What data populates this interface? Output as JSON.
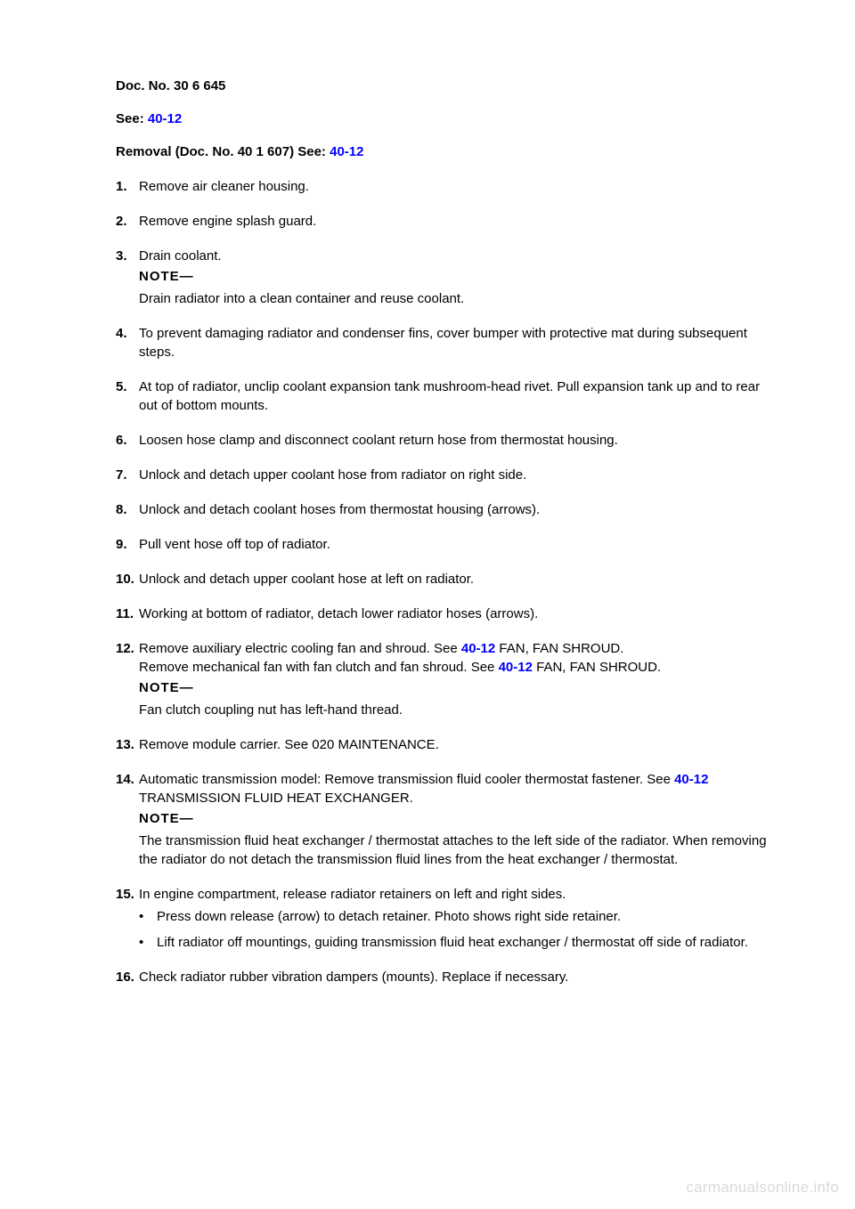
{
  "headers": {
    "doc_no": "Doc. No. 30 6 645",
    "see_label": "See:",
    "see_link_1": "40-12",
    "removal_label": "Removal (Doc. No. 40 1 607)   See:",
    "removal_link": "40-12"
  },
  "steps": {
    "s1": {
      "n": "1.",
      "t": "Remove air cleaner housing."
    },
    "s2": {
      "n": "2.",
      "t": "Remove engine splash guard."
    },
    "s3": {
      "n": "3.",
      "t": "Drain coolant."
    },
    "note_coolant_label": "NOTE—",
    "note_coolant_body": "Drain radiator into a clean container and reuse coolant.",
    "s4": {
      "n": "4.",
      "t": "To prevent damaging radiator and condenser fins, cover bumper with protective mat during subsequent steps."
    },
    "s5": {
      "n": "5.",
      "t": "At top of radiator, unclip coolant expansion tank mushroom-head rivet. Pull expansion tank up and to rear out of bottom mounts."
    },
    "s6": {
      "n": "6.",
      "t": "Loosen hose clamp and disconnect coolant return hose from thermostat housing."
    },
    "s7": {
      "n": "7.",
      "t": "Unlock and detach upper coolant hose from radiator on right side."
    },
    "s8": {
      "n": "8.",
      "t": "Unlock and detach coolant hoses from thermostat housing (arrows)."
    },
    "s9": {
      "n": "9.",
      "t": "Pull vent hose off top of radiator."
    },
    "s10": {
      "n": "10.",
      "t": "Unlock and detach upper coolant hose at left on radiator."
    },
    "s11": {
      "n": "11.",
      "t": "Working at bottom of radiator, detach lower radiator hoses (arrows)."
    },
    "s12": {
      "n": "12.",
      "t_a": "Remove auxiliary electric cooling fan and shroud. See ",
      "link_a": "40-12",
      "t_a2": " FAN, FAN SHROUD.",
      "t_b": "Remove mechanical fan with fan clutch and fan shroud. See ",
      "link_b": "40-12",
      "t_b2": " FAN, FAN SHROUD."
    },
    "note_coupling_label": "NOTE—",
    "note_coupling_body": "Fan clutch coupling nut has left-hand thread.",
    "s13": {
      "n": "13.",
      "t": "Remove module carrier. See 020 MAINTENANCE."
    },
    "s14": {
      "n": "14.",
      "t_a": "Automatic transmission model: Remove transmission fluid cooler thermostat fastener. See ",
      "link_a": "40-12",
      "t_a2": " TRANSMISSION FLUID HEAT EXCHANGER."
    },
    "note_fluid_label": "NOTE—",
    "note_fluid_body": "The transmission fluid heat exchanger / thermostat attaches to the left side of the radiator. When removing the radiator do not detach the transmission fluid lines from the heat exchanger / thermostat.",
    "s15": {
      "n": "15.",
      "t": "In engine compartment, release radiator retainers on left and right sides."
    },
    "bullets": {
      "b1": "Press down release (arrow) to detach retainer. Photo shows right side retainer.",
      "b2": "Lift radiator off mountings, guiding transmission fluid heat exchanger / thermostat off side of radiator."
    },
    "s16": {
      "n": "16.",
      "t": "Check radiator rubber vibration dampers (mounts). Replace if necessary."
    }
  },
  "watermark": "carmanualsonline.info"
}
